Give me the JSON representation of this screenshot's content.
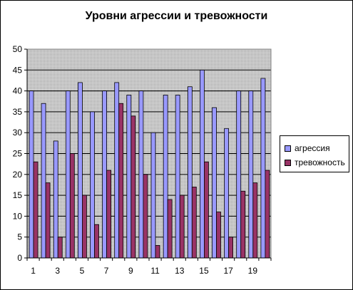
{
  "chart_data": {
    "type": "bar",
    "title": "Уровни агрессии и тревожности",
    "categories": [
      1,
      2,
      3,
      4,
      5,
      6,
      7,
      8,
      9,
      10,
      11,
      12,
      13,
      14,
      15,
      16,
      17,
      18,
      19,
      20
    ],
    "x_tick_labels": [
      "1",
      "3",
      "5",
      "7",
      "9",
      "11",
      "13",
      "15",
      "17",
      "19"
    ],
    "y_ticks": [
      0,
      5,
      10,
      15,
      20,
      25,
      30,
      35,
      40,
      45,
      50
    ],
    "ylim": [
      0,
      50
    ],
    "grid": true,
    "legend_position": "right",
    "series": [
      {
        "name": "агрессия",
        "color": "#9999ff",
        "values": [
          40,
          37,
          28,
          40,
          42,
          35,
          40,
          42,
          39,
          40,
          30,
          39,
          39,
          41,
          45,
          36,
          31,
          40,
          40,
          43
        ]
      },
      {
        "name": "тревожность",
        "color": "#993366",
        "values": [
          23,
          18,
          5,
          25,
          15,
          8,
          21,
          37,
          34,
          20,
          3,
          14,
          15,
          17,
          23,
          11,
          5,
          16,
          18,
          21
        ]
      }
    ],
    "plot_background": "#c0c0c0"
  }
}
